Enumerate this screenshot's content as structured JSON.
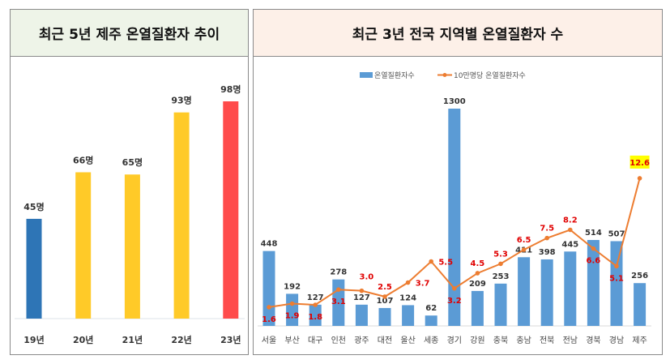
{
  "chart_data": [
    {
      "type": "bar",
      "title": "최근 5년 제주 온열질환자 추이",
      "categories": [
        "19년",
        "20년",
        "21년",
        "22년",
        "23년"
      ],
      "values": [
        45,
        66,
        65,
        93,
        98
      ],
      "labels": [
        "45명",
        "66명",
        "65명",
        "93명",
        "98명"
      ],
      "colors": [
        "#2e75b6",
        "#ffca28",
        "#ffca28",
        "#ffca28",
        "#ff4b4b"
      ],
      "ylim": [
        0,
        100
      ]
    },
    {
      "type": "bar",
      "title": "최근 3년 전국 지역별 온열질환자 수",
      "categories": [
        "서울",
        "부산",
        "대구",
        "인천",
        "광주",
        "대전",
        "울산",
        "세종",
        "경기",
        "강원",
        "충북",
        "충남",
        "전북",
        "전남",
        "경북",
        "경남",
        "제주"
      ],
      "series": [
        {
          "name": "온열질환자수",
          "type": "bar",
          "color": "#5b9bd5",
          "values": [
            448,
            192,
            127,
            278,
            127,
            107,
            124,
            62,
            1300,
            209,
            253,
            411,
            398,
            445,
            514,
            507,
            256
          ]
        },
        {
          "name": "10만명당 온열질환자수",
          "type": "line",
          "color": "#ed7d31",
          "values": [
            1.6,
            1.9,
            1.8,
            3.1,
            3.0,
            2.5,
            3.7,
            5.5,
            3.2,
            4.5,
            5.3,
            6.5,
            7.5,
            8.2,
            6.6,
            5.1,
            12.6
          ]
        }
      ],
      "highlight": {
        "category": "제주",
        "color": "#ffff00"
      },
      "legend": "top-center",
      "ylim": [
        0,
        1300
      ],
      "y2lim": [
        0,
        12.6
      ]
    }
  ]
}
